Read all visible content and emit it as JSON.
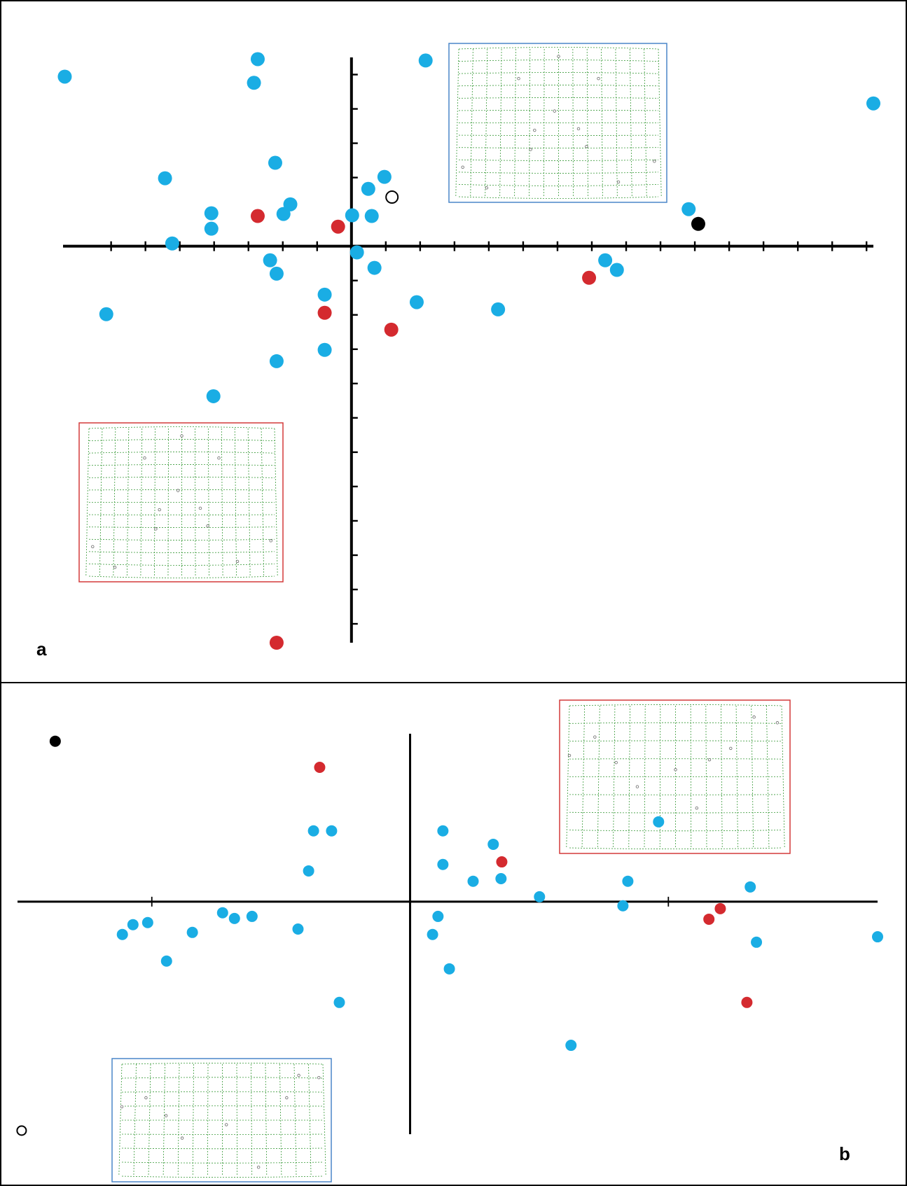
{
  "chart_data": [
    {
      "type": "scatter",
      "panel_label": "a",
      "xlim": [
        -8.4,
        15.2
      ],
      "ylim": [
        -11.55,
        5.5
      ],
      "xticks": [
        -7,
        -6,
        -5,
        -4,
        -3,
        -2,
        -1,
        1,
        2,
        3,
        4,
        5,
        6,
        7,
        8,
        9,
        10,
        11,
        12,
        13,
        14,
        15
      ],
      "yticks": [
        -11,
        -10,
        -9,
        -8,
        -7,
        -6,
        -5,
        -4,
        -3,
        -2,
        -1,
        1,
        2,
        3,
        4,
        5
      ],
      "series": [
        {
          "color": "#1aade4",
          "x": [
            -8.35,
            -2.73,
            -2.84,
            2.16,
            15.2,
            -2.22,
            -5.43,
            0.96,
            0.49,
            -4.08,
            -4.08,
            -1.78,
            -1.98,
            0.02,
            0.59,
            -5.22,
            0.16,
            -2.37,
            -2.18,
            0.67,
            7.39,
            7.73,
            9.82,
            -0.78,
            1.9,
            4.27,
            -7.14,
            -0.78,
            -2.18,
            -4.02
          ],
          "y": [
            4.94,
            5.45,
            4.76,
            5.41,
            4.16,
            2.43,
            1.98,
            2.02,
            1.67,
            0.96,
            0.51,
            1.22,
            0.94,
            0.9,
            0.88,
            0.08,
            -0.18,
            -0.41,
            -0.8,
            -0.63,
            -0.41,
            -0.69,
            1.08,
            -1.41,
            -1.63,
            -1.84,
            -1.98,
            -3.02,
            -3.35,
            -4.37
          ]
        },
        {
          "color": "#d42a2f",
          "x": [
            -2.73,
            -0.39,
            6.92,
            -0.78,
            1.16,
            -2.18
          ],
          "y": [
            0.88,
            0.57,
            -0.92,
            -1.94,
            -2.43,
            -11.55
          ]
        },
        {
          "color": "#000000",
          "x": [
            10.1
          ],
          "y": [
            0.65
          ]
        },
        {
          "color": "#000000",
          "marker": "open",
          "x": [
            1.18
          ],
          "y": [
            1.43
          ]
        }
      ]
    },
    {
      "type": "scatter",
      "panel_label": "b",
      "xlim": [
        -1.52,
        1.81
      ],
      "ylim": [
        -0.9,
        0.65
      ],
      "xticks": [
        -1,
        1
      ],
      "series": [
        {
          "color": "#1aade4",
          "x": [
            -0.374,
            -0.304,
            0.127,
            0.322,
            0.962,
            0.127,
            -0.393,
            0.244,
            0.352,
            0.843,
            1.317,
            0.501,
            0.824,
            -1.114,
            -1.073,
            -1.016,
            -0.843,
            -0.726,
            -0.68,
            -0.612,
            -0.434,
            0.108,
            0.087,
            1.341,
            1.81,
            -0.943,
            0.152,
            -0.274,
            0.623
          ],
          "y": [
            0.274,
            0.274,
            0.274,
            0.222,
            0.309,
            0.144,
            0.119,
            0.079,
            0.089,
            0.079,
            0.057,
            0.019,
            -0.016,
            -0.127,
            -0.089,
            -0.081,
            -0.119,
            -0.043,
            -0.065,
            -0.057,
            -0.106,
            -0.057,
            -0.127,
            -0.157,
            -0.136,
            -0.23,
            -0.26,
            -0.39,
            -0.556
          ]
        },
        {
          "color": "#d42a2f",
          "x": [
            -0.35,
            0.355,
            1.201,
            1.157,
            1.304
          ],
          "y": [
            0.52,
            0.154,
            -0.027,
            -0.068,
            -0.39
          ]
        },
        {
          "color": "#000000",
          "x": [
            -1.374
          ],
          "y": [
            0.621
          ]
        },
        {
          "color": "#000000",
          "marker": "open",
          "x": [
            -1.504
          ],
          "y": [
            -0.886
          ]
        }
      ]
    }
  ]
}
